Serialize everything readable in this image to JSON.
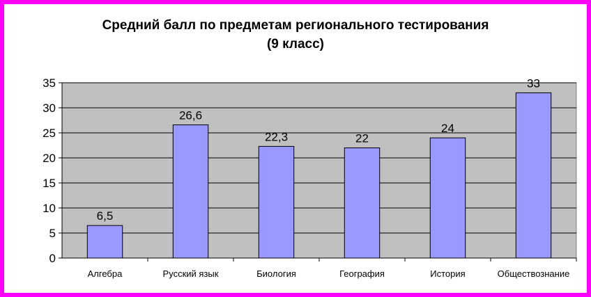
{
  "chart_data": {
    "type": "bar",
    "title": "Средний балл по предметам регионального тестирования",
    "subtitle": "(9 класс)",
    "ylabel": "",
    "xlabel": "",
    "categories": [
      "Алгебра",
      "Русский язык",
      "Биология",
      "География",
      "История",
      "Обществознание"
    ],
    "values": [
      6.5,
      26.6,
      22.3,
      22,
      24,
      33
    ],
    "value_labels": [
      "6,5",
      "26,6",
      "22,3",
      "22",
      "24",
      "33"
    ],
    "ylim": [
      0,
      35
    ],
    "yticks": [
      0,
      5,
      10,
      15,
      20,
      25,
      30,
      35
    ],
    "grid": true,
    "legend": "none",
    "colors": {
      "bar_fill": "#9999ff",
      "bar_stroke": "#000000",
      "plot_background": "#c0c0c0",
      "frame": "#ff00ff",
      "background": "#ffffff"
    }
  }
}
